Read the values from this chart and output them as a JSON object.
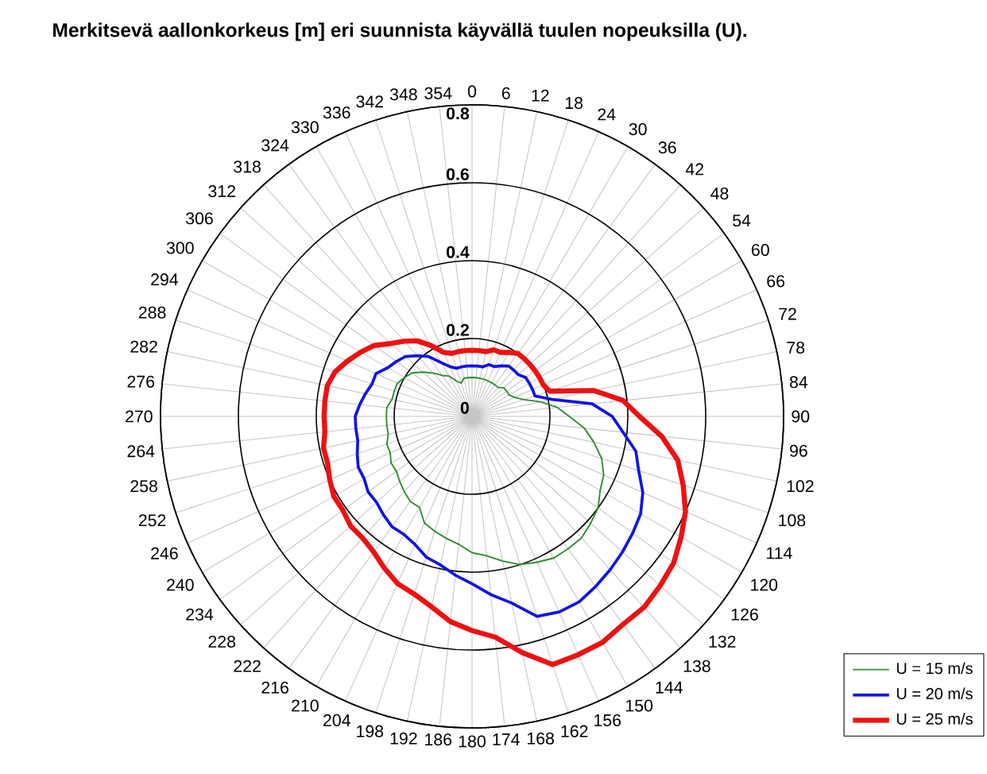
{
  "chart_data": {
    "type": "radar",
    "title": "Merkitsevä aallonkorkeus [m] eri suunnista käyvällä tuulen nopeuksilla (U).",
    "categories": [
      "0",
      "6",
      "12",
      "18",
      "24",
      "30",
      "36",
      "42",
      "48",
      "54",
      "60",
      "66",
      "72",
      "78",
      "84",
      "90",
      "96",
      "102",
      "108",
      "114",
      "120",
      "126",
      "132",
      "138",
      "144",
      "150",
      "156",
      "162",
      "168",
      "174",
      "180",
      "186",
      "192",
      "198",
      "204",
      "210",
      "216",
      "222",
      "228",
      "234",
      "240",
      "246",
      "252",
      "258",
      "264",
      "270",
      "276",
      "282",
      "288",
      "294",
      "300",
      "306",
      "312",
      "318",
      "324",
      "330",
      "336",
      "342",
      "348",
      "354"
    ],
    "ylim": [
      0,
      0.8
    ],
    "yticks": [
      0,
      0.2,
      0.4,
      0.6,
      0.8
    ],
    "grid": true,
    "legend": "bottom right",
    "series": [
      {
        "name": "U = 15 m/s",
        "color": "#2e8b2e",
        "values": [
          0.1,
          0.1,
          0.1,
          0.1,
          0.1,
          0.1,
          0.1,
          0.1,
          0.11,
          0.11,
          0.11,
          0.12,
          0.14,
          0.18,
          0.22,
          0.25,
          0.29,
          0.32,
          0.35,
          0.37,
          0.38,
          0.4,
          0.41,
          0.42,
          0.42,
          0.42,
          0.41,
          0.4,
          0.38,
          0.36,
          0.35,
          0.33,
          0.32,
          0.31,
          0.3,
          0.27,
          0.27,
          0.26,
          0.25,
          0.24,
          0.24,
          0.23,
          0.23,
          0.22,
          0.22,
          0.22,
          0.22,
          0.21,
          0.21,
          0.21,
          0.2,
          0.19,
          0.17,
          0.15,
          0.13,
          0.12,
          0.1,
          0.09,
          0.1,
          0.1
        ]
      },
      {
        "name": "U = 20 m/s",
        "color": "#1414e0",
        "values": [
          0.13,
          0.13,
          0.13,
          0.14,
          0.14,
          0.15,
          0.16,
          0.16,
          0.16,
          0.17,
          0.17,
          0.17,
          0.17,
          0.21,
          0.31,
          0.36,
          0.39,
          0.43,
          0.45,
          0.48,
          0.5,
          0.51,
          0.52,
          0.53,
          0.54,
          0.55,
          0.55,
          0.54,
          0.49,
          0.46,
          0.43,
          0.41,
          0.39,
          0.38,
          0.36,
          0.35,
          0.35,
          0.34,
          0.33,
          0.33,
          0.32,
          0.32,
          0.31,
          0.3,
          0.3,
          0.3,
          0.29,
          0.28,
          0.27,
          0.27,
          0.25,
          0.24,
          0.23,
          0.21,
          0.19,
          0.16,
          0.14,
          0.13,
          0.13,
          0.13
        ]
      },
      {
        "name": "U = 25 m/s",
        "color": "#ee1111",
        "values": [
          0.17,
          0.17,
          0.17,
          0.18,
          0.18,
          0.19,
          0.2,
          0.2,
          0.2,
          0.2,
          0.2,
          0.2,
          0.21,
          0.32,
          0.39,
          0.43,
          0.49,
          0.54,
          0.57,
          0.6,
          0.62,
          0.64,
          0.65,
          0.66,
          0.66,
          0.67,
          0.67,
          0.67,
          0.62,
          0.57,
          0.55,
          0.53,
          0.5,
          0.48,
          0.47,
          0.45,
          0.43,
          0.42,
          0.42,
          0.41,
          0.41,
          0.4,
          0.39,
          0.39,
          0.38,
          0.38,
          0.38,
          0.38,
          0.37,
          0.35,
          0.33,
          0.31,
          0.28,
          0.26,
          0.24,
          0.21,
          0.18,
          0.17,
          0.17,
          0.17
        ]
      }
    ]
  }
}
